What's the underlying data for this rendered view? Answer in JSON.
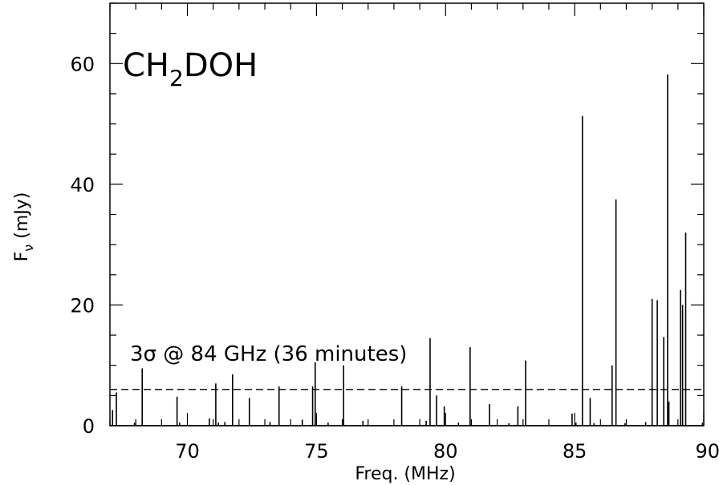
{
  "chart_data": {
    "type": "bar",
    "title": "",
    "species_label": {
      "base": "CH",
      "subscript": "2",
      "rest": "DOH"
    },
    "xlabel": "Freq. (MHz)",
    "ylabel": {
      "main": "F",
      "sub": "ν",
      "unit": "(mJy)"
    },
    "xlim": [
      67.0,
      90.0
    ],
    "ylim": [
      0,
      70
    ],
    "x_ticks": [
      "70",
      "75",
      "80",
      "85",
      "90"
    ],
    "y_ticks": [
      "0",
      "20",
      "40",
      "60"
    ],
    "grid": false,
    "threshold": {
      "value": 6.0,
      "style": "dashed",
      "label": "3σ @ 84 GHz (36 minutes)"
    },
    "lines": [
      {
        "x": 67.1,
        "y": 2.6
      },
      {
        "x": 67.25,
        "y": 5.5
      },
      {
        "x": 67.95,
        "y": 0.5
      },
      {
        "x": 68.25,
        "y": 9.5
      },
      {
        "x": 69.6,
        "y": 4.8
      },
      {
        "x": 69.7,
        "y": 0.5
      },
      {
        "x": 70.85,
        "y": 1.2
      },
      {
        "x": 71.1,
        "y": 7.0
      },
      {
        "x": 71.2,
        "y": 0.5
      },
      {
        "x": 71.45,
        "y": 0.6
      },
      {
        "x": 71.75,
        "y": 8.5
      },
      {
        "x": 72.4,
        "y": 4.6
      },
      {
        "x": 73.2,
        "y": 0.6
      },
      {
        "x": 73.55,
        "y": 6.5
      },
      {
        "x": 74.45,
        "y": 1.0
      },
      {
        "x": 74.85,
        "y": 6.5
      },
      {
        "x": 74.95,
        "y": 10.5
      },
      {
        "x": 75.45,
        "y": 0.5
      },
      {
        "x": 76.05,
        "y": 10.0
      },
      {
        "x": 76.8,
        "y": 0.8
      },
      {
        "x": 78.3,
        "y": 6.5
      },
      {
        "x": 79.25,
        "y": 0.8
      },
      {
        "x": 79.4,
        "y": 14.5
      },
      {
        "x": 79.65,
        "y": 5.0
      },
      {
        "x": 79.95,
        "y": 3.2
      },
      {
        "x": 80.5,
        "y": 0.5
      },
      {
        "x": 80.95,
        "y": 13.0
      },
      {
        "x": 81.7,
        "y": 3.6
      },
      {
        "x": 82.45,
        "y": 0.4
      },
      {
        "x": 82.8,
        "y": 3.2
      },
      {
        "x": 83.1,
        "y": 10.8
      },
      {
        "x": 84.9,
        "y": 2.0
      },
      {
        "x": 85.05,
        "y": 0.5
      },
      {
        "x": 85.3,
        "y": 51.3
      },
      {
        "x": 85.6,
        "y": 4.6
      },
      {
        "x": 85.75,
        "y": 0.4
      },
      {
        "x": 86.45,
        "y": 10.0
      },
      {
        "x": 86.6,
        "y": 37.5
      },
      {
        "x": 86.95,
        "y": 0.4
      },
      {
        "x": 87.75,
        "y": 0.6
      },
      {
        "x": 88.0,
        "y": 21.0
      },
      {
        "x": 88.2,
        "y": 20.8
      },
      {
        "x": 88.45,
        "y": 14.7
      },
      {
        "x": 88.6,
        "y": 58.2
      },
      {
        "x": 88.65,
        "y": 4.0
      },
      {
        "x": 89.1,
        "y": 22.5
      },
      {
        "x": 89.18,
        "y": 20.0
      },
      {
        "x": 89.3,
        "y": 32.0
      },
      {
        "x": 89.95,
        "y": 0.5
      }
    ]
  }
}
